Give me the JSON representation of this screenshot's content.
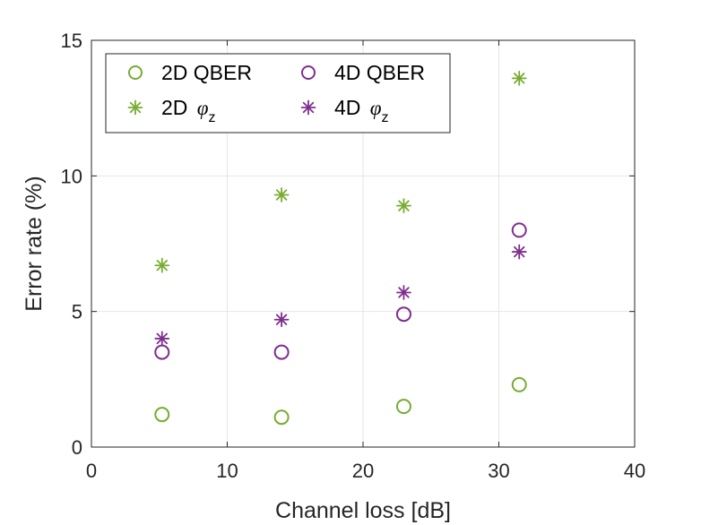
{
  "chart_data": {
    "type": "scatter",
    "title": "",
    "xlabel": "Channel loss [dB]",
    "ylabel": "Error rate (%)",
    "xlim": [
      0,
      40
    ],
    "ylim": [
      0,
      15
    ],
    "xticks": [
      0,
      10,
      20,
      30,
      40
    ],
    "yticks": [
      0,
      5,
      10,
      15
    ],
    "xtick_labels": [
      "0",
      "10",
      "20",
      "30",
      "40"
    ],
    "ytick_labels": [
      "0",
      "5",
      "10",
      "15"
    ],
    "grid": true,
    "legend_position": "top-left",
    "legend_title": "",
    "series": [
      {
        "name": "2D QBER",
        "label": "2D QBER",
        "marker": "circle",
        "color": "#77ac30",
        "x": [
          5.2,
          14.0,
          23.0,
          31.5
        ],
        "y": [
          1.2,
          1.1,
          1.5,
          2.3
        ]
      },
      {
        "name": "2D φz",
        "label": "2D ",
        "phi": "φ",
        "sub": "z",
        "marker": "asterisk",
        "color": "#77ac30",
        "x": [
          5.2,
          14.0,
          23.0,
          31.5
        ],
        "y": [
          6.7,
          9.3,
          8.9,
          13.6
        ]
      },
      {
        "name": "4D QBER",
        "label": "4D QBER",
        "marker": "circle",
        "color": "#7e2f8e",
        "x": [
          5.2,
          14.0,
          23.0,
          31.5
        ],
        "y": [
          3.5,
          3.5,
          4.9,
          8.0
        ]
      },
      {
        "name": "4D φz",
        "label": "4D ",
        "phi": "φ",
        "sub": "z",
        "marker": "asterisk",
        "color": "#7e2f8e",
        "x": [
          5.2,
          14.0,
          23.0,
          31.5
        ],
        "y": [
          4.0,
          4.7,
          5.7,
          7.2
        ]
      }
    ]
  }
}
